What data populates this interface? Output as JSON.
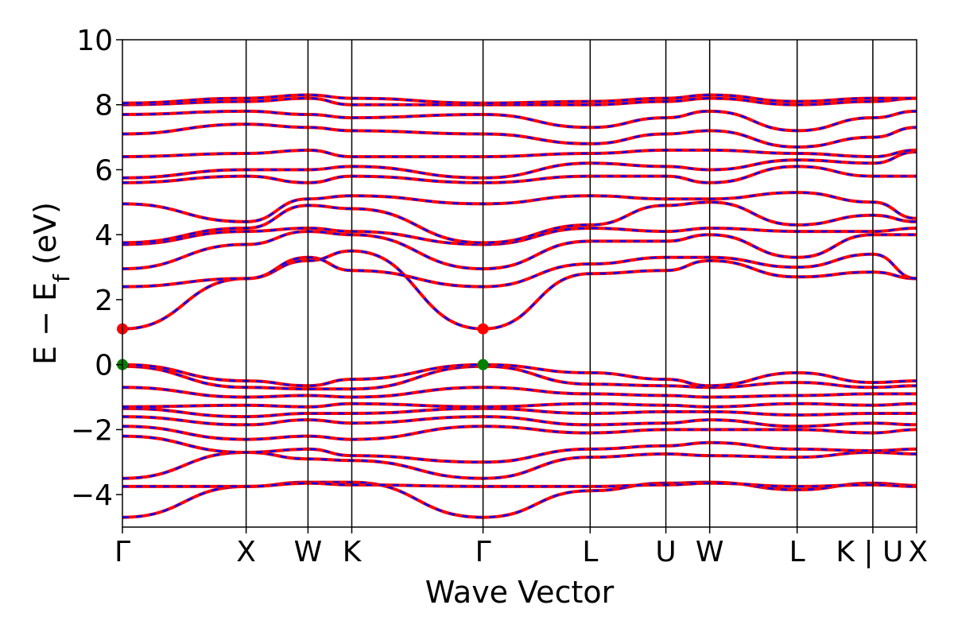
{
  "chart_data": {
    "type": "line",
    "title": "",
    "xlabel": "Wave Vector",
    "ylabel": "E − E",
    "ylabel_sub": "f",
    "ylabel_unit": " (eV)",
    "ylim": [
      -5,
      10
    ],
    "yticks": [
      -4,
      -2,
      0,
      2,
      4,
      6,
      8,
      10
    ],
    "ytick_labels": [
      "−4",
      "−2",
      "0",
      "2",
      "4",
      "6",
      "8",
      "10"
    ],
    "kpoints": [
      {
        "label": "Γ",
        "pos": 0.0
      },
      {
        "label": "X",
        "pos": 1.0
      },
      {
        "label": "W",
        "pos": 1.5
      },
      {
        "label": "K",
        "pos": 1.854
      },
      {
        "label": "Γ",
        "pos": 2.915
      },
      {
        "label": "L",
        "pos": 3.781
      },
      {
        "label": "U",
        "pos": 4.393
      },
      {
        "label": "W",
        "pos": 4.747
      },
      {
        "label": "L",
        "pos": 5.454
      },
      {
        "label": "K | U",
        "pos": 6.066
      },
      {
        "label": "X",
        "pos": 6.42
      }
    ],
    "series": [
      {
        "values": [
          -4.7,
          -3.75,
          -3.62,
          -3.62,
          -4.7,
          -3.88,
          -3.65,
          -3.62,
          -3.85,
          -3.65,
          -3.72
        ]
      },
      {
        "values": [
          -3.75,
          -3.75,
          -3.65,
          -3.7,
          -3.75,
          -3.75,
          -3.7,
          -3.65,
          -3.75,
          -3.7,
          -3.75
        ]
      },
      {
        "values": [
          -3.5,
          -2.7,
          -2.9,
          -2.95,
          -3.5,
          -2.85,
          -2.75,
          -2.8,
          -2.85,
          -2.7,
          -2.75
        ]
      },
      {
        "values": [
          -2.2,
          -2.7,
          -2.6,
          -2.8,
          -3.0,
          -2.6,
          -2.5,
          -2.4,
          -2.6,
          -2.65,
          -2.6
        ]
      },
      {
        "values": [
          -1.9,
          -2.3,
          -2.2,
          -2.3,
          -1.9,
          -2.1,
          -2.0,
          -2.0,
          -2.0,
          -2.1,
          -2.0
        ]
      },
      {
        "values": [
          -1.6,
          -1.85,
          -1.7,
          -1.8,
          -1.6,
          -1.85,
          -1.8,
          -1.7,
          -1.9,
          -1.8,
          -1.85
        ]
      },
      {
        "values": [
          -1.35,
          -1.6,
          -1.5,
          -1.5,
          -1.35,
          -1.5,
          -1.45,
          -1.45,
          -1.55,
          -1.5,
          -1.5
        ]
      },
      {
        "values": [
          -1.3,
          -1.25,
          -1.3,
          -1.2,
          -1.3,
          -1.2,
          -1.25,
          -1.3,
          -1.2,
          -1.25,
          -1.2
        ]
      },
      {
        "values": [
          -0.7,
          -1.0,
          -0.95,
          -1.0,
          -0.7,
          -0.9,
          -0.95,
          -1.0,
          -0.95,
          -0.9,
          -0.9
        ]
      },
      {
        "values": [
          -0.05,
          -0.7,
          -0.75,
          -0.75,
          -0.05,
          -0.6,
          -0.65,
          -0.7,
          -0.55,
          -0.7,
          -0.65
        ]
      },
      {
        "values": [
          0.0,
          -0.5,
          -0.65,
          -0.45,
          0.0,
          -0.25,
          -0.45,
          -0.65,
          -0.25,
          -0.55,
          -0.5
        ]
      },
      {
        "values": [
          1.1,
          2.65,
          3.2,
          3.5,
          1.1,
          2.8,
          2.9,
          3.2,
          2.7,
          2.85,
          2.65
        ]
      },
      {
        "values": [
          2.4,
          2.65,
          3.3,
          2.9,
          2.4,
          3.1,
          3.3,
          3.3,
          3.0,
          3.4,
          2.65
        ]
      },
      {
        "values": [
          2.95,
          3.7,
          4.1,
          4.0,
          2.95,
          3.8,
          3.8,
          4.0,
          3.3,
          4.0,
          4.0
        ]
      },
      {
        "values": [
          3.7,
          4.1,
          4.2,
          4.1,
          3.7,
          4.2,
          4.1,
          4.2,
          4.1,
          4.1,
          4.2
        ]
      },
      {
        "values": [
          3.75,
          4.2,
          4.9,
          4.8,
          3.75,
          4.3,
          4.9,
          5.0,
          4.3,
          4.6,
          4.4
        ]
      },
      {
        "values": [
          4.95,
          4.4,
          5.1,
          5.2,
          4.95,
          5.2,
          5.1,
          5.1,
          5.3,
          5.0,
          4.5
        ]
      },
      {
        "values": [
          5.6,
          5.8,
          5.6,
          5.8,
          5.6,
          5.8,
          5.8,
          5.6,
          6.1,
          5.8,
          5.8
        ]
      },
      {
        "values": [
          5.75,
          6.0,
          6.0,
          6.1,
          5.75,
          6.2,
          6.1,
          6.0,
          6.3,
          6.2,
          6.55
        ]
      },
      {
        "values": [
          6.4,
          6.5,
          6.6,
          6.4,
          6.4,
          6.5,
          6.6,
          6.6,
          6.5,
          6.4,
          6.6
        ]
      },
      {
        "values": [
          7.1,
          7.4,
          7.3,
          7.2,
          7.1,
          6.8,
          7.1,
          7.2,
          6.7,
          7.0,
          7.3
        ]
      },
      {
        "values": [
          7.7,
          7.8,
          7.7,
          7.6,
          7.7,
          7.3,
          7.6,
          7.8,
          7.2,
          7.6,
          7.8
        ]
      },
      {
        "values": [
          8.0,
          8.1,
          8.2,
          8.0,
          8.0,
          8.0,
          8.1,
          8.2,
          8.0,
          8.1,
          8.2
        ]
      },
      {
        "values": [
          8.05,
          8.2,
          8.3,
          8.2,
          8.05,
          8.1,
          8.2,
          8.3,
          8.1,
          8.2,
          8.2
        ]
      }
    ],
    "markers": [
      {
        "k": 0.0,
        "y": 1.1,
        "color": "#ff0000"
      },
      {
        "k": 2.915,
        "y": 1.1,
        "color": "#ff0000"
      },
      {
        "k": 0.0,
        "y": 0.0,
        "color": "#008000"
      },
      {
        "k": 2.915,
        "y": 0.0,
        "color": "#008000"
      }
    ],
    "colors": {
      "band_a": "#ff0000",
      "band_b": "#0000ff",
      "cbm": "#ff0000",
      "vbm": "#008000"
    },
    "grid": false
  }
}
